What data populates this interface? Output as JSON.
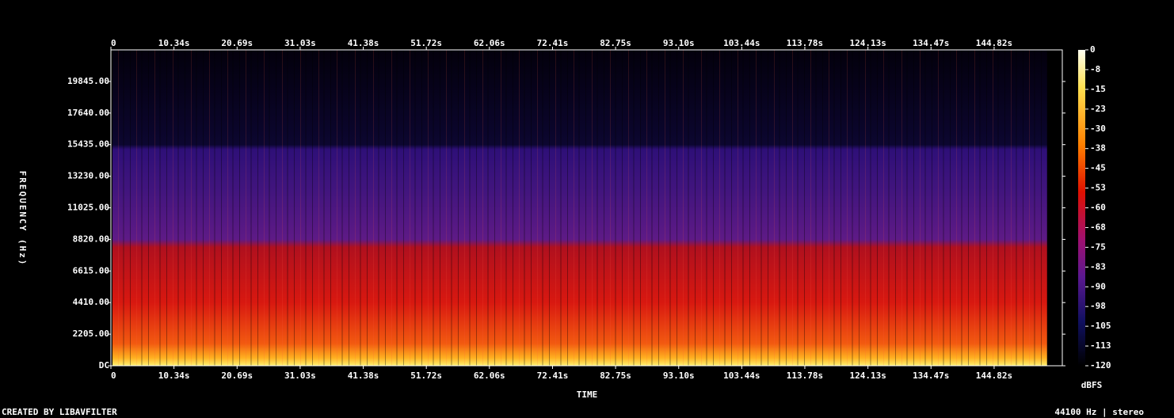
{
  "chart_data": {
    "type": "spectrogram",
    "xlabel": "TIME",
    "ylabel": "FREQUENCY (Hz)",
    "xlim": [
      0,
      156
    ],
    "xticks": [
      0,
      {
        "value": 10.34,
        "label": "10.34s"
      },
      {
        "value": 20.69,
        "label": "20.69s"
      },
      {
        "value": 31.03,
        "label": "31.03s"
      },
      {
        "value": 41.38,
        "label": "41.38s"
      },
      {
        "value": 51.72,
        "label": "51.72s"
      },
      {
        "value": 62.06,
        "label": "62.06s"
      },
      {
        "value": 72.41,
        "label": "72.41s"
      },
      {
        "value": 82.75,
        "label": "82.75s"
      },
      {
        "value": 93.1,
        "label": "93.10s"
      },
      {
        "value": 103.44,
        "label": "103.44s"
      },
      {
        "value": 113.78,
        "label": "113.78s"
      },
      {
        "value": 124.13,
        "label": "124.13s"
      },
      {
        "value": 134.47,
        "label": "134.47s"
      },
      {
        "value": 144.82,
        "label": "144.82s"
      }
    ],
    "ylim": [
      0,
      22050
    ],
    "yticks": [
      {
        "value": 0,
        "label": "DC"
      },
      {
        "value": 2205,
        "label": "2205.00"
      },
      {
        "value": 4410,
        "label": "4410.00"
      },
      {
        "value": 6615,
        "label": "6615.00"
      },
      {
        "value": 8820,
        "label": "8820.00"
      },
      {
        "value": 11025,
        "label": "11025.00"
      },
      {
        "value": 13230,
        "label": "13230.00"
      },
      {
        "value": 15435,
        "label": "15435.00"
      },
      {
        "value": 17640,
        "label": "17640.00"
      },
      {
        "value": 19845,
        "label": "19845.00"
      }
    ],
    "colorbar": {
      "label": "dBFS",
      "lim": [
        -120,
        0
      ],
      "ticks": [
        0,
        {
          "value": -7.5,
          "label": "-8"
        },
        -15,
        {
          "value": -22.5,
          "label": "-23"
        },
        -30,
        {
          "value": -37.5,
          "label": "-38"
        },
        -45,
        {
          "value": -52.5,
          "label": "-53"
        },
        -60,
        {
          "value": -67.5,
          "label": "-68"
        },
        -75,
        {
          "value": -82.5,
          "label": "-83"
        },
        -90,
        {
          "value": -97.5,
          "label": "-98"
        },
        -105,
        {
          "value": -112.5,
          "label": "-113"
        },
        -120
      ]
    },
    "credit": "CREATED BY LIBAVFILTER",
    "info": "44100 Hz | stereo"
  }
}
